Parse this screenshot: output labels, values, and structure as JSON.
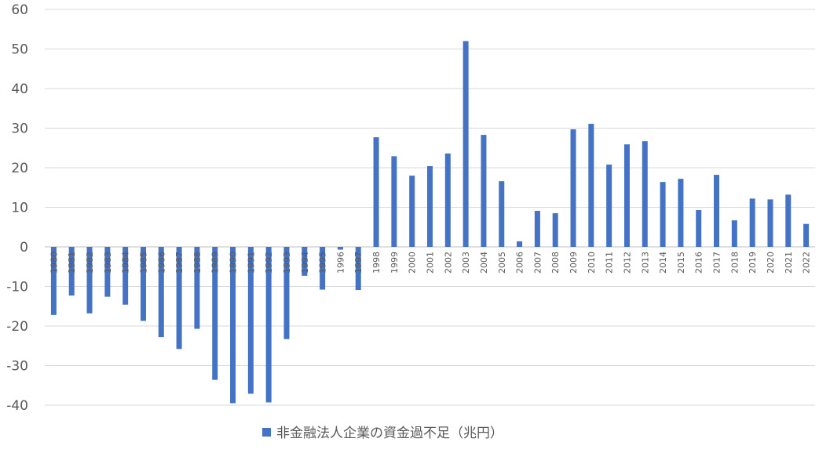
{
  "chart_data": {
    "type": "bar",
    "legend": "非金融法人企業の資金過不足（兆円）",
    "legend_position": "bottom-center",
    "series_color": "#4472C4",
    "grid": true,
    "ylim": [
      -40,
      60
    ],
    "yticks": [
      "60",
      "50",
      "40",
      "30",
      "20",
      "10",
      "0",
      "-10",
      "-20",
      "-30",
      "-40"
    ],
    "categories": [
      "1980",
      "1981",
      "1982",
      "1983",
      "1984",
      "1985",
      "1986",
      "1987",
      "1988",
      "1989",
      "1990",
      "1991",
      "1992",
      "1993",
      "1994",
      "1995",
      "1996",
      "1997",
      "1998",
      "1999",
      "2000",
      "2001",
      "2002",
      "2003",
      "2004",
      "2005",
      "2006",
      "2007",
      "2008",
      "2009",
      "2010",
      "2011",
      "2012",
      "2013",
      "2014",
      "2015",
      "2016",
      "2017",
      "2018",
      "2019",
      "2020",
      "2021",
      "2022"
    ],
    "values": [
      -17.2,
      -12.3,
      -16.8,
      -12.6,
      -14.6,
      -18.7,
      -22.8,
      -25.8,
      -20.7,
      -33.6,
      -39.5,
      -37.1,
      -39.3,
      -23.3,
      -7.3,
      -10.8,
      -0.7,
      -10.9,
      27.7,
      22.9,
      18.0,
      20.4,
      23.6,
      52.0,
      28.3,
      16.6,
      1.4,
      9.1,
      8.5,
      29.7,
      31.1,
      20.8,
      25.9,
      26.7,
      16.4,
      17.2,
      9.3,
      18.2,
      6.7,
      12.2,
      12.0,
      13.2,
      5.8
    ]
  }
}
